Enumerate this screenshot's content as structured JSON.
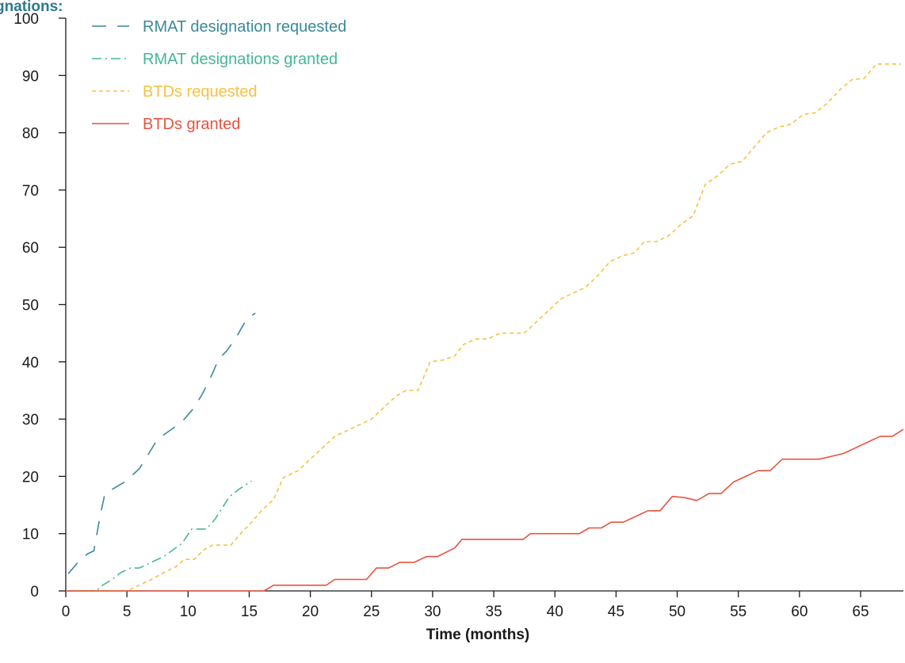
{
  "colors": {
    "rmat_requested": "#3a8a99",
    "rmat_granted": "#45b795",
    "btd_requested": "#f5c242",
    "btd_granted": "#e8533f",
    "axis": "#1a1a1a"
  },
  "chart_data": {
    "type": "line",
    "title": "gnations:",
    "xlabel": "Time (months)",
    "ylabel": "",
    "xlim": [
      0,
      68.5
    ],
    "ylim": [
      0,
      100
    ],
    "x_ticks": [
      0,
      5,
      10,
      15,
      20,
      25,
      30,
      35,
      40,
      45,
      50,
      55,
      60,
      65
    ],
    "y_ticks": [
      0,
      10,
      20,
      30,
      40,
      50,
      60,
      70,
      80,
      90,
      100
    ],
    "grid": false,
    "legend_position": "top-left",
    "series": [
      {
        "name": "RMAT designation requested",
        "color_key": "rmat_requested",
        "dash": "18,14",
        "points": [
          [
            0.2,
            3
          ],
          [
            1,
            5
          ],
          [
            1.8,
            6.5
          ],
          [
            2.3,
            7
          ],
          [
            2.8,
            13
          ],
          [
            3.2,
            17
          ],
          [
            4,
            18
          ],
          [
            4.8,
            19
          ],
          [
            6,
            21.3
          ],
          [
            6.8,
            24
          ],
          [
            7.5,
            26.5
          ],
          [
            8.5,
            28
          ],
          [
            9.5,
            29.5
          ],
          [
            10.5,
            32
          ],
          [
            11.2,
            34.5
          ],
          [
            12,
            38
          ],
          [
            12.5,
            40.5
          ],
          [
            13.2,
            42
          ],
          [
            14,
            44.5
          ],
          [
            14.8,
            47.5
          ],
          [
            15.5,
            48.5
          ]
        ]
      },
      {
        "name": "RMAT designations granted",
        "color_key": "rmat_granted",
        "dash": "12,5,2,5",
        "points": [
          [
            0,
            0
          ],
          [
            2.5,
            0
          ],
          [
            3,
            1
          ],
          [
            3.8,
            2
          ],
          [
            4.5,
            3.2
          ],
          [
            5.3,
            4
          ],
          [
            6,
            4
          ],
          [
            7,
            5
          ],
          [
            8,
            6
          ],
          [
            8.8,
            7.2
          ],
          [
            9.5,
            8.3
          ],
          [
            10.3,
            10.8
          ],
          [
            11,
            10.8
          ],
          [
            11.5,
            10.8
          ],
          [
            12.2,
            12.5
          ],
          [
            12.8,
            14.5
          ],
          [
            13.4,
            16.5
          ],
          [
            14.2,
            17.8
          ],
          [
            15.2,
            19.2
          ]
        ]
      },
      {
        "name": "BTDs requested",
        "color_key": "btd_requested",
        "dash": "5,4",
        "points": [
          [
            0,
            0
          ],
          [
            5,
            0
          ],
          [
            6,
            1
          ],
          [
            7,
            2
          ],
          [
            8,
            3.2
          ],
          [
            9,
            4.2
          ],
          [
            9.7,
            5.5
          ],
          [
            10.5,
            5.5
          ],
          [
            11.3,
            7.2
          ],
          [
            12,
            8
          ],
          [
            12.8,
            8
          ],
          [
            13.5,
            8
          ],
          [
            14.3,
            10
          ],
          [
            15.2,
            12
          ],
          [
            16,
            14
          ],
          [
            17,
            16
          ],
          [
            17.8,
            19.8
          ],
          [
            19,
            21
          ],
          [
            20,
            23
          ],
          [
            21,
            25
          ],
          [
            22,
            27
          ],
          [
            23,
            28
          ],
          [
            24,
            29
          ],
          [
            25,
            30
          ],
          [
            26,
            32
          ],
          [
            27,
            34
          ],
          [
            27.8,
            35
          ],
          [
            28.8,
            35
          ],
          [
            29.8,
            40
          ],
          [
            30.8,
            40.3
          ],
          [
            31.8,
            41
          ],
          [
            32.5,
            43
          ],
          [
            33.5,
            44
          ],
          [
            34.5,
            44
          ],
          [
            35.5,
            45
          ],
          [
            36.5,
            45
          ],
          [
            37.5,
            45
          ],
          [
            38.5,
            47
          ],
          [
            39.5,
            49
          ],
          [
            40.5,
            51
          ],
          [
            41.5,
            52
          ],
          [
            42.5,
            53
          ],
          [
            43.5,
            55
          ],
          [
            44.5,
            57.5
          ],
          [
            45.5,
            58.5
          ],
          [
            46.5,
            59
          ],
          [
            47.3,
            61
          ],
          [
            48.3,
            61
          ],
          [
            49.3,
            62
          ],
          [
            50.3,
            64
          ],
          [
            51.3,
            65.5
          ],
          [
            52.3,
            71
          ],
          [
            53.3,
            72.5
          ],
          [
            54.3,
            74.5
          ],
          [
            55.3,
            75
          ],
          [
            56.3,
            77.5
          ],
          [
            57.3,
            80
          ],
          [
            58.3,
            81
          ],
          [
            59.3,
            81.5
          ],
          [
            60.3,
            83.2
          ],
          [
            61.3,
            83.5
          ],
          [
            62.3,
            85.2
          ],
          [
            63.3,
            87.5
          ],
          [
            64.3,
            89.3
          ],
          [
            65.3,
            89.5
          ],
          [
            66.3,
            92
          ],
          [
            67.3,
            92
          ],
          [
            68.3,
            92
          ]
        ]
      },
      {
        "name": "BTDs granted",
        "color_key": "btd_granted",
        "dash": "",
        "points": [
          [
            0,
            0
          ],
          [
            8,
            0
          ],
          [
            16.2,
            0
          ],
          [
            17,
            1
          ],
          [
            18,
            1
          ],
          [
            19,
            1
          ],
          [
            20,
            1
          ],
          [
            21.3,
            1
          ],
          [
            22,
            2
          ],
          [
            23,
            2
          ],
          [
            24,
            2
          ],
          [
            24.6,
            2
          ],
          [
            25.4,
            4
          ],
          [
            26.4,
            4
          ],
          [
            27.3,
            5
          ],
          [
            28.5,
            5
          ],
          [
            29.5,
            6
          ],
          [
            30.4,
            6
          ],
          [
            31.8,
            7.5
          ],
          [
            32.4,
            9
          ],
          [
            33.4,
            9
          ],
          [
            34.4,
            9
          ],
          [
            35.4,
            9
          ],
          [
            36.4,
            9
          ],
          [
            37.4,
            9
          ],
          [
            38,
            10
          ],
          [
            39,
            10
          ],
          [
            40,
            10
          ],
          [
            41,
            10
          ],
          [
            42,
            10
          ],
          [
            42.8,
            11
          ],
          [
            43.8,
            11
          ],
          [
            44.6,
            12
          ],
          [
            45.6,
            12
          ],
          [
            46.6,
            13
          ],
          [
            47.6,
            14
          ],
          [
            48.6,
            14
          ],
          [
            49.6,
            16.5
          ],
          [
            50.6,
            16.3
          ],
          [
            51.6,
            15.8
          ],
          [
            52.6,
            17
          ],
          [
            53.6,
            17
          ],
          [
            54.6,
            19
          ],
          [
            55.6,
            20
          ],
          [
            56.6,
            21
          ],
          [
            57.6,
            21
          ],
          [
            58.6,
            23
          ],
          [
            59.6,
            23
          ],
          [
            60.6,
            23
          ],
          [
            61.6,
            23
          ],
          [
            62.6,
            23.5
          ],
          [
            63.6,
            24
          ],
          [
            64.6,
            25
          ],
          [
            65.6,
            26
          ],
          [
            66.6,
            27
          ],
          [
            67.6,
            27
          ],
          [
            68.5,
            28.2
          ]
        ]
      }
    ]
  }
}
